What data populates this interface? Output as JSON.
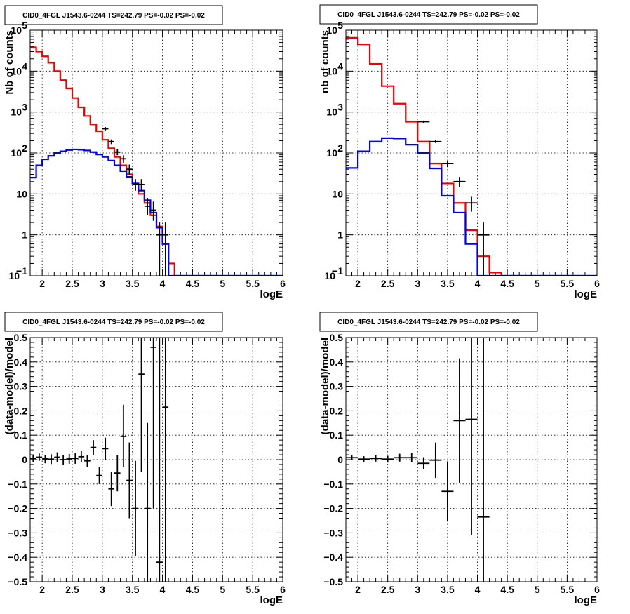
{
  "chart_data": [
    {
      "id": "p1",
      "type": "histogram",
      "title": "CID0_4FGL J1543.6-0244 TS=242.79 PS=-0.02 PS=-0.02",
      "xlabel": "logE",
      "ylabel": "Nb of counts",
      "xlim": [
        1.8,
        6.0
      ],
      "ylim": [
        0.1,
        100000
      ],
      "log_y": true,
      "grid": true,
      "xticks": [
        "2",
        "2.5",
        "3",
        "3.5",
        "4",
        "4.5",
        "5",
        "5.5",
        "6"
      ],
      "yticks": [
        {
          "v": 0.1,
          "base": "10",
          "exp": "−1"
        },
        {
          "v": 1,
          "label": "1"
        },
        {
          "v": 10,
          "label": "10"
        },
        {
          "v": 100,
          "base": "10",
          "exp": "2"
        },
        {
          "v": 1000,
          "base": "10",
          "exp": "3"
        },
        {
          "v": 10000,
          "base": "10",
          "exp": "4"
        },
        {
          "v": 100000,
          "base": "10",
          "exp": "5"
        }
      ],
      "bin_start": 1.8,
      "bin_width": 0.1,
      "series": [
        {
          "color": "#ee0000",
          "values": [
            38000,
            30000,
            23000,
            16000,
            10000,
            6000,
            3800,
            2200,
            1300,
            800,
            500,
            340,
            210,
            130,
            80,
            50,
            30,
            18,
            10,
            6,
            3,
            1.6,
            0.6,
            0.2,
            0.1,
            0.1,
            0.1,
            0.1,
            0.1,
            0.1,
            0.1,
            0.1,
            0.1,
            0.1,
            0.1,
            0.1,
            0.1,
            0.1,
            0.1,
            0.1,
            0.1,
            0.1
          ]
        },
        {
          "color": "#0000ee",
          "values": [
            25,
            50,
            70,
            85,
            100,
            110,
            118,
            122,
            120,
            115,
            105,
            92,
            80,
            65,
            50,
            36,
            26,
            18,
            12,
            7,
            3.5,
            1.5,
            0.6,
            0.1,
            0.1,
            0.1,
            0.1,
            0.1,
            0.1,
            0.1,
            0.1,
            0.1,
            0.1,
            0.1,
            0.1,
            0.1,
            0.1,
            0.1,
            0.1,
            0.1,
            0.1,
            0.1
          ]
        }
      ],
      "points": [
        {
          "x": 3.05,
          "y": 390,
          "xerr": 0.05,
          "ylo": 355,
          "yhi": 430
        },
        {
          "x": 3.15,
          "y": 190,
          "xerr": 0.05,
          "ylo": 165,
          "yhi": 215
        },
        {
          "x": 3.25,
          "y": 105,
          "xerr": 0.05,
          "ylo": 88,
          "yhi": 125
        },
        {
          "x": 3.35,
          "y": 72,
          "xerr": 0.05,
          "ylo": 58,
          "yhi": 88
        },
        {
          "x": 3.45,
          "y": 40,
          "xerr": 0.05,
          "ylo": 30,
          "yhi": 52
        },
        {
          "x": 3.55,
          "y": 17,
          "xerr": 0.05,
          "ylo": 12,
          "yhi": 23
        },
        {
          "x": 3.65,
          "y": 17,
          "xerr": 0.05,
          "ylo": 12,
          "yhi": 23
        },
        {
          "x": 3.75,
          "y": 5,
          "xerr": 0.05,
          "ylo": 3,
          "yhi": 8
        },
        {
          "x": 3.85,
          "y": 4,
          "xerr": 0.05,
          "ylo": 2.2,
          "yhi": 6.5
        },
        {
          "x": 3.95,
          "y": 1,
          "xerr": 0.05,
          "ylo": 0.1,
          "yhi": 2
        },
        {
          "x": 4.05,
          "y": 1,
          "xerr": 0.05,
          "ylo": 0.1,
          "yhi": 2
        }
      ]
    },
    {
      "id": "p2",
      "type": "histogram",
      "title": "CID0_4FGL J1543.6-0244 TS=242.79 PS=-0.02 PS=-0.02",
      "xlabel": "logE",
      "ylabel": "nb of counts",
      "xlim": [
        1.8,
        6.0
      ],
      "ylim": [
        0.1,
        100000
      ],
      "log_y": true,
      "grid": true,
      "xticks": [
        "2",
        "2.5",
        "3",
        "3.5",
        "4",
        "4.5",
        "5",
        "5.5",
        "6"
      ],
      "yticks": [
        {
          "v": 0.1,
          "base": "10",
          "exp": "−1"
        },
        {
          "v": 1,
          "label": "1"
        },
        {
          "v": 10,
          "label": "10"
        },
        {
          "v": 100,
          "base": "10",
          "exp": "2"
        },
        {
          "v": 1000,
          "base": "10",
          "exp": "3"
        },
        {
          "v": 10000,
          "base": "10",
          "exp": "4"
        },
        {
          "v": 100000,
          "base": "10",
          "exp": "5"
        }
      ],
      "bin_start": 1.8,
      "bin_width": 0.2,
      "series": [
        {
          "color": "#ee0000",
          "values": [
            65000,
            45000,
            15000,
            4300,
            1600,
            580,
            190,
            55,
            18,
            6,
            1.3,
            0.3,
            0.12,
            0.1,
            0.1,
            0.1,
            0.1,
            0.1,
            0.1,
            0.1,
            0.1
          ]
        },
        {
          "color": "#0000ee",
          "values": [
            43,
            110,
            190,
            230,
            225,
            160,
            100,
            42,
            9,
            3.5,
            0.6,
            0.1,
            0.1,
            0.1,
            0.1,
            0.1,
            0.1,
            0.1,
            0.1,
            0.1,
            0.1
          ]
        }
      ],
      "points": [
        {
          "x": 3.1,
          "y": 580,
          "xerr": 0.1,
          "ylo": 545,
          "yhi": 620
        },
        {
          "x": 3.3,
          "y": 190,
          "xerr": 0.1,
          "ylo": 175,
          "yhi": 205
        },
        {
          "x": 3.5,
          "y": 55,
          "xerr": 0.1,
          "ylo": 45,
          "yhi": 65
        },
        {
          "x": 3.7,
          "y": 20,
          "xerr": 0.1,
          "ylo": 15,
          "yhi": 26
        },
        {
          "x": 3.9,
          "y": 6,
          "xerr": 0.1,
          "ylo": 3.7,
          "yhi": 8.5
        },
        {
          "x": 4.1,
          "y": 1,
          "xerr": 0.1,
          "ylo": 0.1,
          "yhi": 2
        }
      ]
    },
    {
      "id": "p3",
      "type": "scatter",
      "title": "CID0_4FGL J1543.6-0244 TS=242.79 PS=-0.02 PS=-0.02",
      "xlabel": "logE",
      "ylabel": "(data-model)/model",
      "xlim": [
        1.8,
        6.0
      ],
      "ylim": [
        -0.5,
        0.5
      ],
      "log_y": false,
      "grid": true,
      "xticks": [
        "2",
        "2.5",
        "3",
        "3.5",
        "4",
        "4.5",
        "5",
        "5.5",
        "6"
      ],
      "yticks": [
        "−0.5",
        "−0.4",
        "−0.3",
        "−0.2",
        "−0.1",
        "0",
        "0.1",
        "0.2",
        "0.3",
        "0.4",
        "0.5"
      ],
      "points": [
        {
          "x": 1.85,
          "y": 0.005,
          "xerr": 0.05,
          "ylo": -0.01,
          "yhi": 0.02
        },
        {
          "x": 1.95,
          "y": 0.01,
          "xerr": 0.05,
          "ylo": -0.005,
          "yhi": 0.025
        },
        {
          "x": 2.05,
          "y": 0.003,
          "xerr": 0.05,
          "ylo": -0.015,
          "yhi": 0.02
        },
        {
          "x": 2.15,
          "y": 0.002,
          "xerr": 0.05,
          "ylo": -0.018,
          "yhi": 0.022
        },
        {
          "x": 2.25,
          "y": 0.01,
          "xerr": 0.05,
          "ylo": -0.01,
          "yhi": 0.03
        },
        {
          "x": 2.35,
          "y": 0.0,
          "xerr": 0.05,
          "ylo": -0.02,
          "yhi": 0.02
        },
        {
          "x": 2.45,
          "y": 0.003,
          "xerr": 0.05,
          "ylo": -0.017,
          "yhi": 0.023
        },
        {
          "x": 2.55,
          "y": 0.005,
          "xerr": 0.05,
          "ylo": -0.017,
          "yhi": 0.027
        },
        {
          "x": 2.65,
          "y": 0.012,
          "xerr": 0.05,
          "ylo": -0.01,
          "yhi": 0.035
        },
        {
          "x": 2.75,
          "y": -0.005,
          "xerr": 0.05,
          "ylo": -0.03,
          "yhi": 0.02
        },
        {
          "x": 2.85,
          "y": 0.05,
          "xerr": 0.05,
          "ylo": 0.02,
          "yhi": 0.08
        },
        {
          "x": 2.95,
          "y": -0.065,
          "xerr": 0.05,
          "ylo": -0.1,
          "yhi": -0.03
        },
        {
          "x": 3.05,
          "y": 0.045,
          "xerr": 0.05,
          "ylo": 0.0,
          "yhi": 0.09
        },
        {
          "x": 3.15,
          "y": -0.12,
          "xerr": 0.05,
          "ylo": -0.19,
          "yhi": -0.05
        },
        {
          "x": 3.25,
          "y": -0.055,
          "xerr": 0.05,
          "ylo": -0.13,
          "yhi": 0.02
        },
        {
          "x": 3.35,
          "y": 0.095,
          "xerr": 0.05,
          "ylo": -0.03,
          "yhi": 0.225
        },
        {
          "x": 3.45,
          "y": -0.085,
          "xerr": 0.05,
          "ylo": -0.24,
          "yhi": 0.07
        },
        {
          "x": 3.55,
          "y": -0.2,
          "xerr": 0.05,
          "ylo": -0.395,
          "yhi": -0.005
        },
        {
          "x": 3.65,
          "y": 0.35,
          "xerr": 0.05,
          "ylo": -0.05,
          "yhi": 0.5
        },
        {
          "x": 3.75,
          "y": -0.2,
          "xerr": 0.05,
          "ylo": -0.5,
          "yhi": 0.15
        },
        {
          "x": 3.85,
          "y": 0.46,
          "xerr": 0.05,
          "ylo": -0.2,
          "yhi": 0.5
        },
        {
          "x": 3.95,
          "y": -0.42,
          "xerr": 0.05,
          "ylo": -0.5,
          "yhi": 0.5
        },
        {
          "x": 4.05,
          "y": 0.215,
          "xerr": 0.05,
          "ylo": -0.5,
          "yhi": 0.5
        }
      ]
    },
    {
      "id": "p4",
      "type": "scatter",
      "title": "CID0_4FGL J1543.6-0244 TS=242.79 PS=-0.02 PS=-0.02",
      "xlabel": "logE",
      "ylabel": "(data-model)/model",
      "xlim": [
        1.8,
        6.0
      ],
      "ylim": [
        -0.5,
        0.5
      ],
      "log_y": false,
      "grid": true,
      "xticks": [
        "2",
        "2.5",
        "3",
        "3.5",
        "4",
        "4.5",
        "5",
        "5.5",
        "6"
      ],
      "yticks": [
        "−0.5",
        "−0.4",
        "−0.3",
        "−0.2",
        "−0.1",
        "0",
        "0.1",
        "0.2",
        "0.3",
        "0.4",
        "0.5"
      ],
      "points": [
        {
          "x": 1.9,
          "y": 0.008,
          "xerr": 0.1,
          "ylo": -0.002,
          "yhi": 0.018
        },
        {
          "x": 2.1,
          "y": 0.002,
          "xerr": 0.1,
          "ylo": -0.01,
          "yhi": 0.014
        },
        {
          "x": 2.3,
          "y": 0.005,
          "xerr": 0.1,
          "ylo": -0.008,
          "yhi": 0.018
        },
        {
          "x": 2.5,
          "y": 0.002,
          "xerr": 0.1,
          "ylo": -0.012,
          "yhi": 0.016
        },
        {
          "x": 2.7,
          "y": 0.008,
          "xerr": 0.1,
          "ylo": -0.008,
          "yhi": 0.024
        },
        {
          "x": 2.9,
          "y": 0.008,
          "xerr": 0.1,
          "ylo": -0.01,
          "yhi": 0.026
        },
        {
          "x": 3.1,
          "y": -0.015,
          "xerr": 0.1,
          "ylo": -0.04,
          "yhi": 0.01
        },
        {
          "x": 3.3,
          "y": -0.002,
          "xerr": 0.1,
          "ylo": -0.075,
          "yhi": 0.07
        },
        {
          "x": 3.5,
          "y": -0.13,
          "xerr": 0.1,
          "ylo": -0.25,
          "yhi": -0.01
        },
        {
          "x": 3.7,
          "y": 0.16,
          "xerr": 0.1,
          "ylo": -0.095,
          "yhi": 0.415
        },
        {
          "x": 3.9,
          "y": 0.165,
          "xerr": 0.1,
          "ylo": -0.31,
          "yhi": 0.5
        },
        {
          "x": 4.1,
          "y": -0.235,
          "xerr": 0.1,
          "ylo": -0.5,
          "yhi": 0.5
        }
      ]
    }
  ]
}
